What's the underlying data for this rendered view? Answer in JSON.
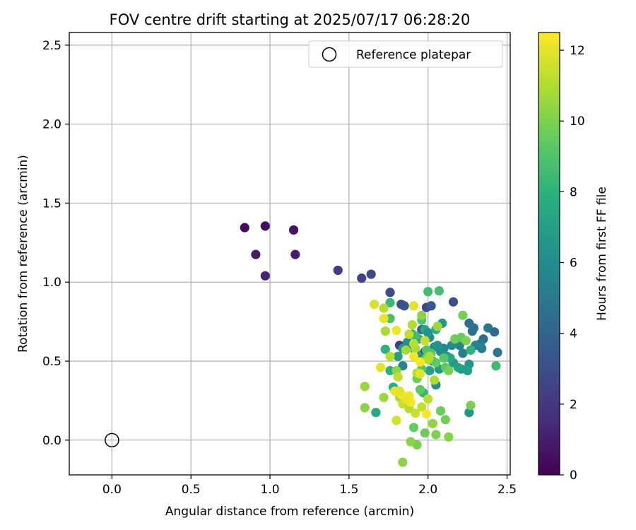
{
  "chart_data": {
    "type": "scatter",
    "title": "FOV centre drift starting at 2025/07/17 06:28:20",
    "xlabel": "Angular distance from reference (arcmin)",
    "ylabel": "Rotation from reference (arcmin)",
    "xlim": [
      -0.27,
      2.52
    ],
    "ylim": [
      -0.22,
      2.58
    ],
    "xticks": [
      0.0,
      0.5,
      1.0,
      1.5,
      2.0,
      2.5
    ],
    "xtick_labels": [
      "0.0",
      "0.5",
      "1.0",
      "1.5",
      "2.0",
      "2.5"
    ],
    "yticks": [
      0.0,
      0.5,
      1.0,
      1.5,
      2.0,
      2.5
    ],
    "ytick_labels": [
      "0.0",
      "0.5",
      "1.0",
      "1.5",
      "2.0",
      "2.5"
    ],
    "grid": true,
    "legend": {
      "placement": "upper-right",
      "entries": [
        "Reference platepar"
      ]
    },
    "reference_point": {
      "x": 0.0,
      "y": 0.0,
      "marker": "open-circle",
      "edge_color": "#000000"
    },
    "colorbar": {
      "label": "Hours from first FF file",
      "range": [
        0,
        12.5
      ],
      "ticks": [
        0,
        2,
        4,
        6,
        8,
        10,
        12
      ],
      "tick_labels": [
        "0",
        "2",
        "4",
        "6",
        "8",
        "10",
        "12"
      ],
      "colormap": "viridis"
    },
    "points": [
      {
        "x": 0.84,
        "y": 1.345,
        "c": 0.3
      },
      {
        "x": 0.97,
        "y": 1.355,
        "c": 0.5
      },
      {
        "x": 1.15,
        "y": 1.33,
        "c": 0.7
      },
      {
        "x": 0.91,
        "y": 1.175,
        "c": 0.9
      },
      {
        "x": 1.16,
        "y": 1.175,
        "c": 1.0
      },
      {
        "x": 0.97,
        "y": 1.04,
        "c": 1.2
      },
      {
        "x": 1.43,
        "y": 1.075,
        "c": 2.2
      },
      {
        "x": 1.58,
        "y": 1.025,
        "c": 2.5
      },
      {
        "x": 1.64,
        "y": 1.05,
        "c": 2.8
      },
      {
        "x": 1.76,
        "y": 0.935,
        "c": 2.9
      },
      {
        "x": 2.16,
        "y": 0.875,
        "c": 3.0
      },
      {
        "x": 1.83,
        "y": 0.86,
        "c": 3.1
      },
      {
        "x": 1.85,
        "y": 0.85,
        "c": 3.2
      },
      {
        "x": 1.99,
        "y": 0.84,
        "c": 2.6
      },
      {
        "x": 2.02,
        "y": 0.85,
        "c": 3.4
      },
      {
        "x": 1.82,
        "y": 0.6,
        "c": 2.2
      },
      {
        "x": 1.98,
        "y": 0.56,
        "c": 2.4
      },
      {
        "x": 1.96,
        "y": 0.7,
        "c": 3.5
      },
      {
        "x": 2.26,
        "y": 0.74,
        "c": 4.5
      },
      {
        "x": 2.29,
        "y": 0.71,
        "c": 4.8
      },
      {
        "x": 2.38,
        "y": 0.71,
        "c": 5.0
      },
      {
        "x": 2.42,
        "y": 0.685,
        "c": 4.2
      },
      {
        "x": 2.28,
        "y": 0.69,
        "c": 4.6
      },
      {
        "x": 2.35,
        "y": 0.64,
        "c": 4.4
      },
      {
        "x": 2.33,
        "y": 0.61,
        "c": 5.2
      },
      {
        "x": 2.3,
        "y": 0.6,
        "c": 5.6
      },
      {
        "x": 2.34,
        "y": 0.58,
        "c": 5.4
      },
      {
        "x": 2.44,
        "y": 0.555,
        "c": 4.9
      },
      {
        "x": 2.22,
        "y": 0.55,
        "c": 5.3
      },
      {
        "x": 2.2,
        "y": 0.6,
        "c": 5.5
      },
      {
        "x": 2.18,
        "y": 0.63,
        "c": 5.8
      },
      {
        "x": 2.15,
        "y": 0.6,
        "c": 6.0
      },
      {
        "x": 2.1,
        "y": 0.58,
        "c": 5.7
      },
      {
        "x": 2.08,
        "y": 0.56,
        "c": 6.1
      },
      {
        "x": 2.04,
        "y": 0.59,
        "c": 5.9
      },
      {
        "x": 2.01,
        "y": 0.65,
        "c": 6.2
      },
      {
        "x": 2.06,
        "y": 0.6,
        "c": 6.5
      },
      {
        "x": 2.12,
        "y": 0.53,
        "c": 6.3
      },
      {
        "x": 2.16,
        "y": 0.49,
        "c": 6.7
      },
      {
        "x": 2.21,
        "y": 0.45,
        "c": 6.9
      },
      {
        "x": 2.26,
        "y": 0.48,
        "c": 6.4
      },
      {
        "x": 2.25,
        "y": 0.44,
        "c": 7.0
      },
      {
        "x": 2.19,
        "y": 0.46,
        "c": 7.2
      },
      {
        "x": 2.14,
        "y": 0.52,
        "c": 7.4
      },
      {
        "x": 2.07,
        "y": 0.45,
        "c": 6.6
      },
      {
        "x": 2.01,
        "y": 0.44,
        "c": 7.1
      },
      {
        "x": 2.03,
        "y": 0.5,
        "c": 6.8
      },
      {
        "x": 1.96,
        "y": 0.52,
        "c": 6.0
      },
      {
        "x": 1.92,
        "y": 0.56,
        "c": 6.3
      },
      {
        "x": 1.88,
        "y": 0.6,
        "c": 5.9
      },
      {
        "x": 1.84,
        "y": 0.58,
        "c": 6.6
      },
      {
        "x": 1.87,
        "y": 0.62,
        "c": 6.2
      },
      {
        "x": 1.9,
        "y": 0.67,
        "c": 7.0
      },
      {
        "x": 1.94,
        "y": 0.64,
        "c": 7.3
      },
      {
        "x": 1.98,
        "y": 0.7,
        "c": 7.6
      },
      {
        "x": 2.0,
        "y": 0.68,
        "c": 6.4
      },
      {
        "x": 2.05,
        "y": 0.7,
        "c": 7.8
      },
      {
        "x": 2.09,
        "y": 0.74,
        "c": 6.7
      },
      {
        "x": 1.84,
        "y": 0.47,
        "c": 5.7
      },
      {
        "x": 1.81,
        "y": 0.53,
        "c": 6.9
      },
      {
        "x": 2.05,
        "y": 0.35,
        "c": 6.1
      },
      {
        "x": 2.26,
        "y": 0.175,
        "c": 6.5
      },
      {
        "x": 1.67,
        "y": 0.175,
        "c": 7.5
      },
      {
        "x": 1.78,
        "y": 0.335,
        "c": 7.7
      },
      {
        "x": 1.73,
        "y": 0.575,
        "c": 8.0
      },
      {
        "x": 1.76,
        "y": 0.44,
        "c": 7.9
      },
      {
        "x": 1.97,
        "y": 0.3,
        "c": 8.2
      },
      {
        "x": 2.27,
        "y": 0.57,
        "c": 8.0
      },
      {
        "x": 2.43,
        "y": 0.47,
        "c": 8.5
      },
      {
        "x": 2.0,
        "y": 0.94,
        "c": 8.6
      },
      {
        "x": 2.07,
        "y": 0.945,
        "c": 8.7
      },
      {
        "x": 1.76,
        "y": 0.87,
        "c": 8.4
      },
      {
        "x": 1.76,
        "y": 0.77,
        "c": 8.8
      },
      {
        "x": 1.96,
        "y": 0.76,
        "c": 8.9
      },
      {
        "x": 1.92,
        "y": 0.66,
        "c": 8.6
      },
      {
        "x": 1.99,
        "y": 0.57,
        "c": 9.0
      },
      {
        "x": 2.02,
        "y": 0.55,
        "c": 9.1
      },
      {
        "x": 2.1,
        "y": 0.52,
        "c": 9.2
      },
      {
        "x": 2.11,
        "y": 0.46,
        "c": 9.3
      },
      {
        "x": 2.05,
        "y": 0.49,
        "c": 9.4
      },
      {
        "x": 1.99,
        "y": 0.52,
        "c": 9.5
      },
      {
        "x": 1.96,
        "y": 0.45,
        "c": 9.2
      },
      {
        "x": 1.93,
        "y": 0.39,
        "c": 9.6
      },
      {
        "x": 1.95,
        "y": 0.32,
        "c": 9.4
      },
      {
        "x": 2.17,
        "y": 0.64,
        "c": 9.7
      },
      {
        "x": 2.21,
        "y": 0.65,
        "c": 9.5
      },
      {
        "x": 2.22,
        "y": 0.79,
        "c": 9.8
      },
      {
        "x": 2.24,
        "y": 0.63,
        "c": 10.0
      },
      {
        "x": 2.13,
        "y": 0.44,
        "c": 9.9
      },
      {
        "x": 2.08,
        "y": 0.185,
        "c": 9.6
      },
      {
        "x": 2.11,
        "y": 0.13,
        "c": 9.8
      },
      {
        "x": 2.13,
        "y": 0.02,
        "c": 10.1
      },
      {
        "x": 2.05,
        "y": 0.035,
        "c": 10.0
      },
      {
        "x": 1.98,
        "y": 0.045,
        "c": 9.7
      },
      {
        "x": 1.93,
        "y": -0.03,
        "c": 9.9
      },
      {
        "x": 1.89,
        "y": -0.01,
        "c": 10.2
      },
      {
        "x": 1.84,
        "y": -0.14,
        "c": 10.3
      },
      {
        "x": 1.91,
        "y": 0.08,
        "c": 9.5
      },
      {
        "x": 2.27,
        "y": 0.22,
        "c": 9.9
      },
      {
        "x": 2.03,
        "y": 0.105,
        "c": 10.4
      },
      {
        "x": 1.6,
        "y": 0.205,
        "c": 10.2
      },
      {
        "x": 1.6,
        "y": 0.34,
        "c": 10.5
      },
      {
        "x": 1.72,
        "y": 0.27,
        "c": 10.6
      },
      {
        "x": 1.8,
        "y": 0.44,
        "c": 10.4
      },
      {
        "x": 1.86,
        "y": 0.57,
        "c": 10.7
      },
      {
        "x": 1.92,
        "y": 0.58,
        "c": 10.8
      },
      {
        "x": 1.96,
        "y": 0.79,
        "c": 10.3
      },
      {
        "x": 2.06,
        "y": 0.72,
        "c": 10.6
      },
      {
        "x": 2.01,
        "y": 0.53,
        "c": 10.9
      },
      {
        "x": 2.0,
        "y": 0.51,
        "c": 11.0
      },
      {
        "x": 1.93,
        "y": 0.425,
        "c": 11.1
      },
      {
        "x": 1.91,
        "y": 0.61,
        "c": 11.2
      },
      {
        "x": 1.88,
        "y": 0.67,
        "c": 11.3
      },
      {
        "x": 1.9,
        "y": 0.73,
        "c": 11.0
      },
      {
        "x": 1.72,
        "y": 0.835,
        "c": 11.1
      },
      {
        "x": 1.73,
        "y": 0.69,
        "c": 10.8
      },
      {
        "x": 1.76,
        "y": 0.53,
        "c": 11.2
      },
      {
        "x": 1.81,
        "y": 0.4,
        "c": 11.3
      },
      {
        "x": 1.82,
        "y": 0.27,
        "c": 11.0
      },
      {
        "x": 1.84,
        "y": 0.23,
        "c": 11.4
      },
      {
        "x": 1.88,
        "y": 0.2,
        "c": 11.1
      },
      {
        "x": 1.92,
        "y": 0.17,
        "c": 11.5
      },
      {
        "x": 1.96,
        "y": 0.21,
        "c": 11.3
      },
      {
        "x": 2.0,
        "y": 0.26,
        "c": 11.2
      },
      {
        "x": 1.98,
        "y": 0.63,
        "c": 11.4
      },
      {
        "x": 2.04,
        "y": 0.38,
        "c": 11.0
      },
      {
        "x": 1.8,
        "y": 0.125,
        "c": 11.6
      },
      {
        "x": 1.66,
        "y": 0.86,
        "c": 11.8
      },
      {
        "x": 1.7,
        "y": 0.46,
        "c": 12.0
      },
      {
        "x": 1.72,
        "y": 0.77,
        "c": 12.1
      },
      {
        "x": 1.8,
        "y": 0.695,
        "c": 12.2
      },
      {
        "x": 1.91,
        "y": 0.85,
        "c": 12.0
      },
      {
        "x": 1.95,
        "y": 0.495,
        "c": 12.3
      },
      {
        "x": 1.88,
        "y": 0.28,
        "c": 12.2
      },
      {
        "x": 1.89,
        "y": 0.24,
        "c": 12.4
      },
      {
        "x": 1.86,
        "y": 0.26,
        "c": 12.1
      },
      {
        "x": 1.83,
        "y": 0.29,
        "c": 12.3
      },
      {
        "x": 1.95,
        "y": 0.42,
        "c": 12.0
      },
      {
        "x": 1.99,
        "y": 0.165,
        "c": 12.4
      },
      {
        "x": 1.91,
        "y": 0.53,
        "c": 12.2
      },
      {
        "x": 1.82,
        "y": 0.31,
        "c": 11.9
      },
      {
        "x": 1.79,
        "y": 0.31,
        "c": 12.1
      }
    ]
  }
}
